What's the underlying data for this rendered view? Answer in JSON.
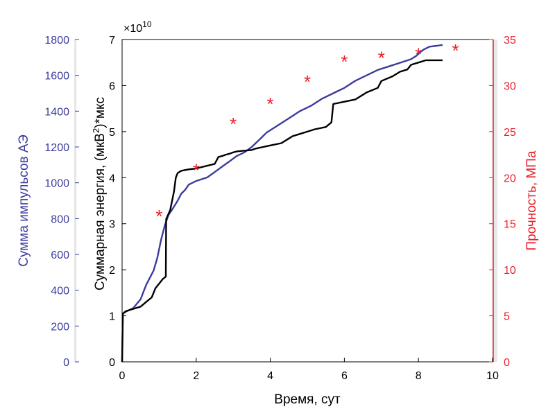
{
  "chart_data": {
    "type": "line",
    "xlabel": "Время, сут",
    "x_ticks": [
      "0",
      "2",
      "4",
      "6",
      "8",
      "10"
    ],
    "xlim": [
      0,
      10
    ],
    "axes": {
      "blue": {
        "label": "Сумма импульсов АЭ",
        "ylim": [
          0,
          1800
        ],
        "ticks": [
          "0",
          "200",
          "400",
          "600",
          "800",
          "1000",
          "1200",
          "1400",
          "1600",
          "1800"
        ],
        "color": "#3b3b9e"
      },
      "black": {
        "label": "Суммарная энергия, (мкВ",
        "label_sup": "2",
        "label_tail": ")*мкс",
        "multiplier": "×10",
        "multiplier_exp": "10",
        "ylim": [
          0,
          7
        ],
        "ticks": [
          "0",
          "1",
          "2",
          "3",
          "4",
          "5",
          "6",
          "7"
        ],
        "color": "#000000"
      },
      "red": {
        "label": "Прочность, МПа",
        "ylim": [
          0,
          35
        ],
        "ticks": [
          "0",
          "5",
          "10",
          "15",
          "20",
          "25",
          "30",
          "35"
        ],
        "color": "#e8202a"
      }
    },
    "series": [
      {
        "axis": "blue",
        "style": "line",
        "x": [
          0,
          0.02,
          0.1,
          0.3,
          0.5,
          0.65,
          0.75,
          0.85,
          0.95,
          1.05,
          1.15,
          1.25,
          1.35,
          1.5,
          1.6,
          1.7,
          1.8,
          2.0,
          2.3,
          2.5,
          2.7,
          2.9,
          3.1,
          3.3,
          3.5,
          3.7,
          3.9,
          4.2,
          4.5,
          4.8,
          5.1,
          5.4,
          5.7,
          6.0,
          6.3,
          6.6,
          6.9,
          7.2,
          7.5,
          7.8,
          7.95,
          8.05,
          8.15,
          8.3,
          8.5,
          8.65
        ],
        "values": [
          0,
          270,
          280,
          300,
          350,
          430,
          470,
          510,
          580,
          680,
          760,
          820,
          850,
          900,
          940,
          960,
          990,
          1010,
          1030,
          1060,
          1090,
          1120,
          1150,
          1170,
          1200,
          1240,
          1280,
          1320,
          1360,
          1400,
          1430,
          1470,
          1500,
          1530,
          1570,
          1600,
          1630,
          1650,
          1670,
          1690,
          1710,
          1730,
          1745,
          1760,
          1765,
          1770
        ]
      },
      {
        "axis": "black",
        "style": "line",
        "x": [
          0,
          0.02,
          0.1,
          0.3,
          0.5,
          0.65,
          0.8,
          0.9,
          1.0,
          1.1,
          1.18,
          1.19,
          1.3,
          1.4,
          1.45,
          1.5,
          1.6,
          1.8,
          2.0,
          2.5,
          2.6,
          2.7,
          2.8,
          2.9,
          3.0,
          3.1,
          3.2,
          3.5,
          3.6,
          4.0,
          4.3,
          4.5,
          4.6,
          4.8,
          5.0,
          5.2,
          5.5,
          5.65,
          5.7,
          6.0,
          6.3,
          6.5,
          6.6,
          6.9,
          7.0,
          7.3,
          7.5,
          7.7,
          7.8,
          8.0,
          8.2,
          8.65
        ],
        "values": [
          0,
          1.05,
          1.1,
          1.15,
          1.2,
          1.3,
          1.4,
          1.6,
          1.7,
          1.8,
          1.85,
          3.1,
          3.3,
          3.7,
          4.0,
          4.1,
          4.15,
          4.18,
          4.2,
          4.3,
          4.45,
          4.47,
          4.5,
          4.52,
          4.55,
          4.57,
          4.58,
          4.6,
          4.63,
          4.7,
          4.75,
          4.85,
          4.9,
          4.95,
          5.0,
          5.05,
          5.1,
          5.2,
          5.6,
          5.65,
          5.7,
          5.8,
          5.85,
          5.95,
          6.1,
          6.2,
          6.3,
          6.35,
          6.45,
          6.5,
          6.55,
          6.55
        ]
      },
      {
        "axis": "red",
        "style": "marker",
        "marker": "*",
        "x": [
          1,
          2,
          3,
          4,
          5,
          6,
          7,
          8,
          9
        ],
        "values": [
          15.8,
          20.8,
          25.8,
          28.0,
          30.4,
          32.6,
          33.0,
          33.4,
          33.8
        ]
      }
    ]
  }
}
